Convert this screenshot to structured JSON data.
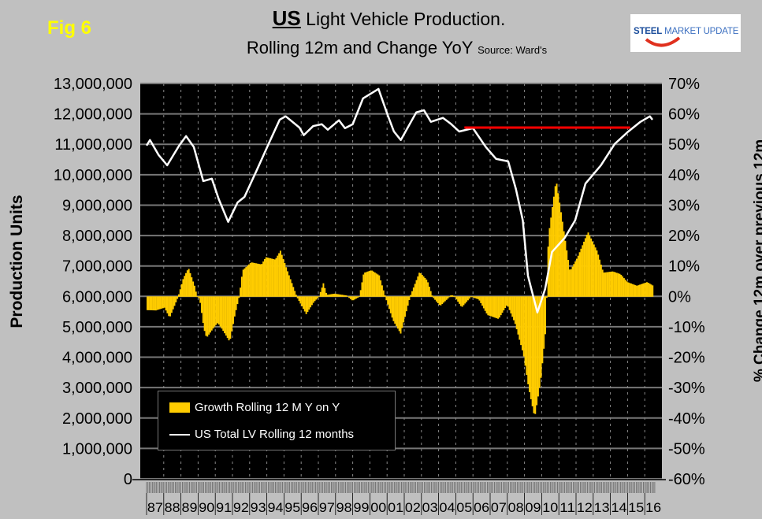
{
  "fig_label": "Fig 6",
  "title": {
    "bold": "US",
    "rest": "Light Vehicle Production.",
    "line2": "Rolling 12m and Change YoY",
    "source": "Source: Ward's"
  },
  "logo": {
    "text_bold": "STEEL",
    "text_rest": "MARKET UPDATE"
  },
  "colors": {
    "background": "#c0c0c0",
    "plot": "#000000",
    "bars": "#ffcc00",
    "line": "#ffffff",
    "reference": "#ff0000",
    "fig_label": "#ffff00"
  },
  "chart_data": {
    "type": "bar+line",
    "ylabel": "Production Units",
    "y2label": "% Change 12m over previous 12m",
    "ylim": [
      0,
      13000000
    ],
    "y2lim": [
      -60,
      70
    ],
    "yticks": [
      "0",
      "1,000,000",
      "2,000,000",
      "3,000,000",
      "4,000,000",
      "5,000,000",
      "6,000,000",
      "7,000,000",
      "8,000,000",
      "9,000,000",
      "10,000,000",
      "11,000,000",
      "12,000,000",
      "13,000,000"
    ],
    "y2ticks": [
      "-60%",
      "-50%",
      "-40%",
      "-30%",
      "-20%",
      "-10%",
      "0%",
      "10%",
      "20%",
      "30%",
      "40%",
      "50%",
      "60%",
      "70%"
    ],
    "xticks": [
      "87",
      "88",
      "89",
      "90",
      "91",
      "92",
      "93",
      "94",
      "95",
      "96",
      "97",
      "98",
      "99",
      "00",
      "01",
      "02",
      "03",
      "04",
      "05",
      "06",
      "07",
      "08",
      "09",
      "10",
      "11",
      "12",
      "13",
      "14",
      "15",
      "16"
    ],
    "grid": true,
    "legend_position": "bottom-left",
    "series": [
      {
        "name": "Growth Rolling 12 M Y on Y",
        "type": "bar",
        "axis": "right",
        "unit": "%",
        "points": [
          [
            1987.0,
            -4.4
          ],
          [
            1987.5,
            -4.5
          ],
          [
            1988.0,
            -3.6
          ],
          [
            1988.3,
            -6.9
          ],
          [
            1988.8,
            0
          ],
          [
            1989.1,
            6
          ],
          [
            1989.4,
            9.3
          ],
          [
            1989.75,
            3.5
          ],
          [
            1989.9,
            0
          ],
          [
            1990.05,
            -0.7
          ],
          [
            1990.3,
            -10.6
          ],
          [
            1990.45,
            -13.5
          ],
          [
            1990.9,
            -9.9
          ],
          [
            1991.1,
            -8.6
          ],
          [
            1991.35,
            -10.6
          ],
          [
            1991.8,
            -14.8
          ],
          [
            1992.1,
            -6
          ],
          [
            1992.35,
            0
          ],
          [
            1992.55,
            8.6
          ],
          [
            1993.05,
            11.2
          ],
          [
            1993.65,
            10.5
          ],
          [
            1993.9,
            12.9
          ],
          [
            1994.45,
            12.1
          ],
          [
            1994.75,
            15
          ],
          [
            1995.2,
            7.7
          ],
          [
            1995.7,
            0
          ],
          [
            1996.25,
            -5.7
          ],
          [
            1996.7,
            -1.7
          ],
          [
            1997.0,
            0
          ],
          [
            1997.25,
            4.3
          ],
          [
            1997.45,
            0.5
          ],
          [
            1997.9,
            0.9
          ],
          [
            1998.6,
            0.3
          ],
          [
            1998.95,
            -1.3
          ],
          [
            1999.35,
            0
          ],
          [
            1999.6,
            7.7
          ],
          [
            2000.05,
            8.6
          ],
          [
            2000.5,
            6.9
          ],
          [
            2000.85,
            0
          ],
          [
            2001.3,
            -7.7
          ],
          [
            2001.75,
            -12.1
          ],
          [
            2002.3,
            0
          ],
          [
            2002.85,
            8.0
          ],
          [
            2003.3,
            5.2
          ],
          [
            2003.6,
            0
          ],
          [
            2004.05,
            -3
          ],
          [
            2004.7,
            0.5
          ],
          [
            2004.9,
            0
          ],
          [
            2005.3,
            -3.5
          ],
          [
            2005.85,
            0
          ],
          [
            2006.3,
            -0.9
          ],
          [
            2006.8,
            -6
          ],
          [
            2007.45,
            -7.3
          ],
          [
            2007.95,
            -2.6
          ],
          [
            2008.4,
            -8.6
          ],
          [
            2008.9,
            -19
          ],
          [
            2009.2,
            -30
          ],
          [
            2009.55,
            -39.7
          ],
          [
            2009.9,
            -27.6
          ],
          [
            2010.2,
            -10.4
          ],
          [
            2010.35,
            19.7
          ],
          [
            2010.8,
            38.3
          ],
          [
            2011.2,
            23.3
          ],
          [
            2011.6,
            8.2
          ],
          [
            2012.05,
            12.9
          ],
          [
            2012.65,
            21.2
          ],
          [
            2013.2,
            14.7
          ],
          [
            2013.55,
            7.8
          ],
          [
            2014.1,
            8.2
          ],
          [
            2014.55,
            7.3
          ],
          [
            2014.95,
            4.7
          ],
          [
            2015.5,
            3.5
          ],
          [
            2016.1,
            4.7
          ],
          [
            2016.45,
            3.5
          ]
        ]
      },
      {
        "name": "US Total LV Rolling 12 months",
        "type": "line",
        "axis": "left",
        "unit": "units",
        "points": [
          [
            1987.0,
            10960000
          ],
          [
            1987.2,
            11140000
          ],
          [
            1987.7,
            10650000
          ],
          [
            1988.2,
            10310000
          ],
          [
            1988.9,
            10960000
          ],
          [
            1989.3,
            11270000
          ],
          [
            1989.75,
            10910000
          ],
          [
            1990.3,
            9790000
          ],
          [
            1990.8,
            9870000
          ],
          [
            1991.2,
            9200000
          ],
          [
            1991.75,
            8450000
          ],
          [
            1992.3,
            9090000
          ],
          [
            1992.7,
            9270000
          ],
          [
            1993.4,
            10130000
          ],
          [
            1994.1,
            11010000
          ],
          [
            1994.75,
            11810000
          ],
          [
            1995.1,
            11920000
          ],
          [
            1995.9,
            11550000
          ],
          [
            1996.15,
            11300000
          ],
          [
            1996.7,
            11600000
          ],
          [
            1997.2,
            11660000
          ],
          [
            1997.55,
            11480000
          ],
          [
            1998.2,
            11790000
          ],
          [
            1998.55,
            11530000
          ],
          [
            1999.0,
            11660000
          ],
          [
            1999.6,
            12510000
          ],
          [
            2000.5,
            12820000
          ],
          [
            2001.05,
            11940000
          ],
          [
            2001.4,
            11420000
          ],
          [
            2001.8,
            11140000
          ],
          [
            2002.7,
            12050000
          ],
          [
            2003.15,
            12120000
          ],
          [
            2003.55,
            11740000
          ],
          [
            2004.25,
            11870000
          ],
          [
            2004.7,
            11680000
          ],
          [
            2005.2,
            11420000
          ],
          [
            2006.0,
            11530000
          ],
          [
            2006.75,
            10910000
          ],
          [
            2007.35,
            10520000
          ],
          [
            2008.05,
            10440000
          ],
          [
            2008.5,
            9530000
          ],
          [
            2008.9,
            8500000
          ],
          [
            2009.2,
            6680000
          ],
          [
            2009.75,
            5470000
          ],
          [
            2010.2,
            6240000
          ],
          [
            2010.6,
            7460000
          ],
          [
            2011.35,
            7930000
          ],
          [
            2011.95,
            8500000
          ],
          [
            2012.55,
            9710000
          ],
          [
            2013.45,
            10310000
          ],
          [
            2014.25,
            11010000
          ],
          [
            2015.0,
            11400000
          ],
          [
            2015.75,
            11740000
          ],
          [
            2016.3,
            11920000
          ],
          [
            2016.45,
            11810000
          ]
        ]
      },
      {
        "name": "Reference level",
        "type": "hline",
        "axis": "left",
        "value": 11550000,
        "x_range": [
          2005.5,
          2015.15
        ]
      }
    ]
  }
}
